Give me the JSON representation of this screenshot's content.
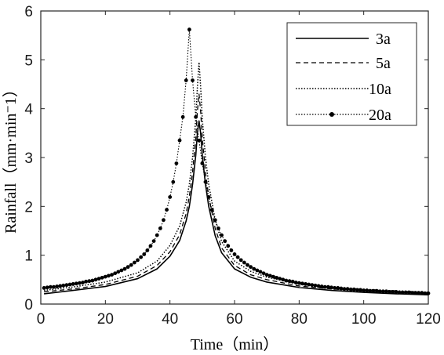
{
  "chart_data": {
    "type": "line",
    "title": "",
    "xlabel": "Time（min）",
    "ylabel": "Rainfall（mm·min⁻1）",
    "xlim": [
      0,
      120
    ],
    "ylim": [
      0,
      6
    ],
    "xticks": [
      "0",
      "20",
      "40",
      "60",
      "80",
      "100",
      "120"
    ],
    "yticks": [
      "0",
      "1",
      "2",
      "3",
      "4",
      "5",
      "6"
    ],
    "grid": false,
    "legend_position": "top-right",
    "series": [
      {
        "name": "3a",
        "style": "solid",
        "points": [
          [
            1,
            0.21
          ],
          [
            10,
            0.28
          ],
          [
            20,
            0.36
          ],
          [
            30,
            0.52
          ],
          [
            36,
            0.72
          ],
          [
            40,
            0.98
          ],
          [
            43,
            1.3
          ],
          [
            45,
            1.7
          ],
          [
            46,
            2.0
          ],
          [
            47,
            2.45
          ],
          [
            48,
            3.05
          ],
          [
            48.5,
            3.5
          ],
          [
            49,
            3.75
          ],
          [
            49.5,
            3.5
          ],
          [
            50,
            3.05
          ],
          [
            51,
            2.45
          ],
          [
            52,
            2.0
          ],
          [
            54,
            1.4
          ],
          [
            56,
            1.05
          ],
          [
            60,
            0.72
          ],
          [
            65,
            0.55
          ],
          [
            70,
            0.45
          ],
          [
            80,
            0.34
          ],
          [
            90,
            0.28
          ],
          [
            100,
            0.24
          ],
          [
            110,
            0.21
          ],
          [
            120,
            0.19
          ]
        ]
      },
      {
        "name": "5a",
        "style": "dashed",
        "points": [
          [
            1,
            0.25
          ],
          [
            10,
            0.31
          ],
          [
            20,
            0.4
          ],
          [
            30,
            0.57
          ],
          [
            36,
            0.79
          ],
          [
            40,
            1.07
          ],
          [
            43,
            1.42
          ],
          [
            45,
            1.85
          ],
          [
            46,
            2.2
          ],
          [
            47,
            2.7
          ],
          [
            48,
            3.4
          ],
          [
            48.5,
            3.95
          ],
          [
            49,
            4.3
          ],
          [
            49.5,
            3.95
          ],
          [
            50,
            3.4
          ],
          [
            51,
            2.7
          ],
          [
            52,
            2.2
          ],
          [
            54,
            1.55
          ],
          [
            56,
            1.15
          ],
          [
            60,
            0.79
          ],
          [
            65,
            0.6
          ],
          [
            70,
            0.5
          ],
          [
            80,
            0.37
          ],
          [
            90,
            0.31
          ],
          [
            100,
            0.27
          ],
          [
            110,
            0.24
          ],
          [
            120,
            0.21
          ]
        ]
      },
      {
        "name": "10a",
        "style": "dotted",
        "points": [
          [
            1,
            0.28
          ],
          [
            10,
            0.35
          ],
          [
            20,
            0.45
          ],
          [
            30,
            0.64
          ],
          [
            36,
            0.88
          ],
          [
            40,
            1.2
          ],
          [
            43,
            1.6
          ],
          [
            45,
            2.08
          ],
          [
            46,
            2.45
          ],
          [
            47,
            3.0
          ],
          [
            48,
            3.8
          ],
          [
            48.5,
            4.45
          ],
          [
            49,
            4.95
          ],
          [
            49.5,
            4.45
          ],
          [
            50,
            3.8
          ],
          [
            51,
            3.0
          ],
          [
            52,
            2.45
          ],
          [
            54,
            1.72
          ],
          [
            56,
            1.28
          ],
          [
            60,
            0.88
          ],
          [
            65,
            0.67
          ],
          [
            70,
            0.55
          ],
          [
            80,
            0.41
          ],
          [
            90,
            0.34
          ],
          [
            100,
            0.3
          ],
          [
            110,
            0.27
          ],
          [
            120,
            0.24
          ]
        ]
      },
      {
        "name": "20a",
        "style": "dotted-marker",
        "x": [
          1,
          2,
          3,
          4,
          5,
          6,
          7,
          8,
          9,
          10,
          11,
          12,
          13,
          14,
          15,
          16,
          17,
          18,
          19,
          20,
          21,
          22,
          23,
          24,
          25,
          26,
          27,
          28,
          29,
          30,
          31,
          32,
          33,
          34,
          35,
          36,
          37,
          38,
          39,
          40,
          41,
          42,
          43,
          44,
          45,
          46,
          47,
          48,
          49,
          50,
          51,
          52,
          53,
          54,
          55,
          56,
          57,
          58,
          59,
          60,
          61,
          62,
          63,
          64,
          65,
          66,
          67,
          68,
          69,
          70,
          71,
          72,
          73,
          74,
          75,
          76,
          77,
          78,
          79,
          80,
          81,
          82,
          83,
          84,
          85,
          86,
          87,
          88,
          89,
          90,
          91,
          92,
          93,
          94,
          95,
          96,
          97,
          98,
          99,
          100,
          101,
          102,
          103,
          104,
          105,
          106,
          107,
          108,
          109,
          110,
          111,
          112,
          113,
          114,
          115,
          116,
          117,
          118,
          119,
          120
        ],
        "y": [
          0.33,
          0.34,
          0.35,
          0.35,
          0.36,
          0.37,
          0.38,
          0.39,
          0.4,
          0.41,
          0.42,
          0.43,
          0.44,
          0.46,
          0.47,
          0.48,
          0.5,
          0.52,
          0.54,
          0.56,
          0.58,
          0.6,
          0.63,
          0.66,
          0.69,
          0.72,
          0.76,
          0.8,
          0.85,
          0.9,
          0.96,
          1.02,
          1.1,
          1.19,
          1.29,
          1.41,
          1.55,
          1.72,
          1.93,
          2.19,
          2.5,
          2.88,
          3.35,
          3.83,
          4.58,
          5.62,
          4.58,
          3.83,
          3.35,
          2.88,
          2.5,
          2.19,
          1.93,
          1.72,
          1.55,
          1.41,
          1.29,
          1.19,
          1.1,
          1.02,
          0.96,
          0.9,
          0.85,
          0.8,
          0.76,
          0.72,
          0.69,
          0.66,
          0.63,
          0.6,
          0.58,
          0.56,
          0.54,
          0.52,
          0.5,
          0.48,
          0.47,
          0.46,
          0.44,
          0.43,
          0.42,
          0.41,
          0.4,
          0.39,
          0.38,
          0.37,
          0.36,
          0.35,
          0.35,
          0.34,
          0.33,
          0.33,
          0.32,
          0.31,
          0.31,
          0.3,
          0.3,
          0.29,
          0.29,
          0.28,
          0.28,
          0.27,
          0.27,
          0.27,
          0.26,
          0.26,
          0.26,
          0.25,
          0.25,
          0.25,
          0.24,
          0.24,
          0.24,
          0.24,
          0.23,
          0.23,
          0.23,
          0.23,
          0.22,
          0.22
        ]
      }
    ]
  }
}
